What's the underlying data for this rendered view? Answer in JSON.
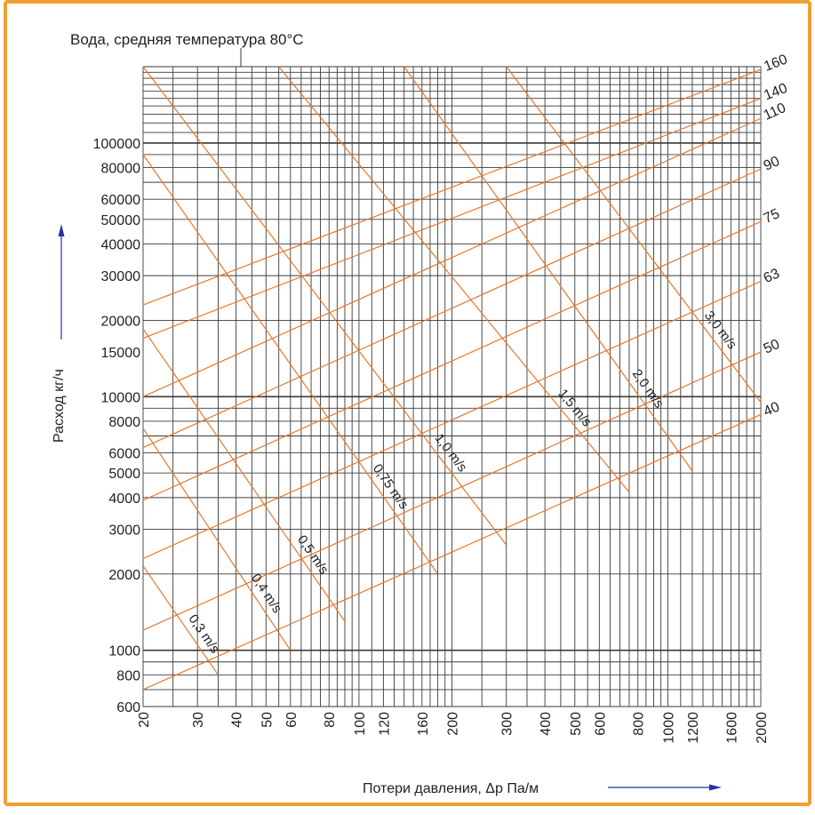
{
  "colors": {
    "border": "#F0A030",
    "series": "#E8772A",
    "grid": "#3a3a3a",
    "axis_arrow": "#2233AA",
    "text": "#222222"
  },
  "chart_data": {
    "type": "line",
    "title": "Вода, средняя температура 80°C",
    "xlabel": "Потери давления, Δp Па/м",
    "ylabel": "Расход кг/ч",
    "x_scale": "log",
    "y_scale": "log",
    "xlim": [
      20,
      2000
    ],
    "ylim": [
      600,
      200000
    ],
    "x_ticks": [
      20,
      30,
      40,
      50,
      60,
      80,
      100,
      120,
      160,
      200,
      300,
      400,
      500,
      600,
      800,
      1000,
      1200,
      1600,
      2000
    ],
    "y_ticks": [
      600,
      800,
      1000,
      2000,
      3000,
      4000,
      5000,
      6000,
      8000,
      10000,
      15000,
      20000,
      30000,
      40000,
      50000,
      60000,
      80000,
      100000
    ],
    "x_grid": [
      20,
      25,
      30,
      35,
      40,
      45,
      50,
      55,
      60,
      65,
      70,
      75,
      80,
      85,
      90,
      95,
      100,
      110,
      120,
      130,
      140,
      150,
      160,
      170,
      180,
      190,
      200,
      250,
      300,
      350,
      400,
      450,
      500,
      550,
      600,
      650,
      700,
      750,
      800,
      850,
      900,
      950,
      1000,
      1100,
      1200,
      1300,
      1400,
      1500,
      1600,
      1700,
      1800,
      1900,
      2000
    ],
    "y_grid": [
      600,
      700,
      800,
      900,
      1000,
      2000,
      3000,
      4000,
      5000,
      6000,
      7000,
      8000,
      9000,
      10000,
      20000,
      30000,
      40000,
      50000,
      60000,
      70000,
      80000,
      90000,
      100000,
      110000,
      120000,
      130000,
      140000,
      150000,
      160000,
      170000,
      180000,
      190000,
      200000
    ],
    "diameter_series": [
      {
        "name": "40",
        "points": [
          [
            20,
            700
          ],
          [
            2000,
            8500
          ]
        ]
      },
      {
        "name": "50",
        "points": [
          [
            20,
            1200
          ],
          [
            2000,
            15000
          ]
        ]
      },
      {
        "name": "63",
        "points": [
          [
            20,
            2300
          ],
          [
            2000,
            28500
          ]
        ]
      },
      {
        "name": "75",
        "points": [
          [
            20,
            3900
          ],
          [
            2000,
            49000
          ]
        ]
      },
      {
        "name": "90",
        "points": [
          [
            20,
            6300
          ],
          [
            2000,
            79000
          ]
        ]
      },
      {
        "name": "110",
        "points": [
          [
            20,
            10000
          ],
          [
            2000,
            125000
          ]
        ]
      },
      {
        "name": "140",
        "points": [
          [
            20,
            17000
          ],
          [
            2000,
            150000
          ]
        ]
      },
      {
        "name": "160",
        "points": [
          [
            20,
            23000
          ],
          [
            2000,
            195000
          ]
        ]
      }
    ],
    "velocity_series": [
      {
        "name": "0,3 m/s",
        "points": [
          [
            20,
            2150
          ],
          [
            35,
            800
          ]
        ]
      },
      {
        "name": "0,4 m/s",
        "points": [
          [
            20,
            7500
          ],
          [
            60,
            1000
          ]
        ]
      },
      {
        "name": "0,5 m/s",
        "points": [
          [
            20,
            18500
          ],
          [
            90,
            1300
          ]
        ]
      },
      {
        "name": "0,75 m/s",
        "points": [
          [
            20,
            90000
          ],
          [
            180,
            2000
          ]
        ]
      },
      {
        "name": "1,0 m/s",
        "points": [
          [
            20,
            200000
          ],
          [
            300,
            2600
          ]
        ]
      },
      {
        "name": "1,5 m/s",
        "points": [
          [
            55,
            200000
          ],
          [
            750,
            4200
          ]
        ]
      },
      {
        "name": "2,0 m/s",
        "points": [
          [
            140,
            200000
          ],
          [
            1200,
            5100
          ]
        ]
      },
      {
        "name": "3,0 m/s",
        "points": [
          [
            300,
            200000
          ],
          [
            2000,
            9500
          ]
        ]
      }
    ]
  }
}
